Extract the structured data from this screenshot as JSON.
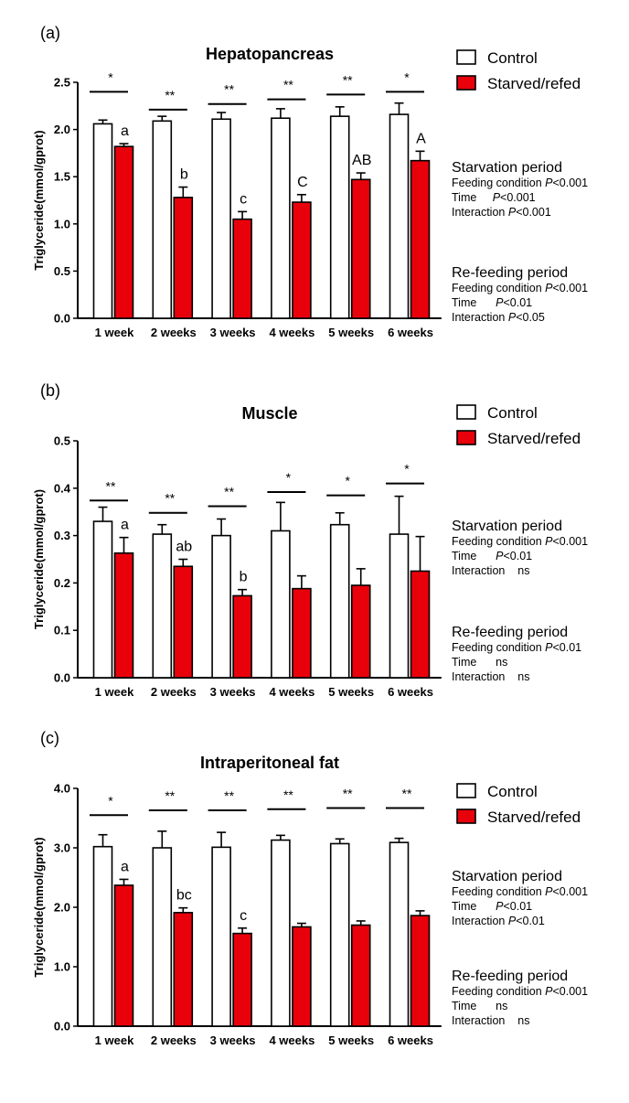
{
  "colors": {
    "control": "#ffffff",
    "treatment": "#e8000b",
    "stroke": "#000000"
  },
  "chart_data": [
    {
      "type": "bar",
      "panel": "(a)",
      "title": "Hepatopancreas",
      "ylabel": "Triglyceride(mmol/gprot)",
      "xlabel": "",
      "ylim": [
        0,
        2.5
      ],
      "yticks": [
        "0.0",
        "0.5",
        "1.0",
        "1.5",
        "2.0",
        "2.5"
      ],
      "categories": [
        "1 week",
        "2 weeks",
        "3 weeks",
        "4 weeks",
        "5 weeks",
        "6 weeks"
      ],
      "series": [
        {
          "name": "Control",
          "values": [
            2.06,
            2.09,
            2.11,
            2.12,
            2.14,
            2.16
          ],
          "errors": [
            0.04,
            0.05,
            0.07,
            0.1,
            0.1,
            0.12
          ]
        },
        {
          "name": "Starved/refed",
          "values": [
            1.82,
            1.28,
            1.05,
            1.23,
            1.47,
            1.67
          ],
          "errors": [
            0.03,
            0.11,
            0.08,
            0.08,
            0.07,
            0.1
          ]
        }
      ],
      "significance": [
        "*",
        "**",
        "**",
        "**",
        "**",
        "*"
      ],
      "significance_y": [
        2.4,
        2.21,
        2.27,
        2.32,
        2.37,
        2.4
      ],
      "letters": [
        "a",
        "b",
        "c",
        "C",
        "AB",
        "A"
      ],
      "legend": [
        "Control",
        "Starved/refed"
      ],
      "stats": {
        "starvation": {
          "head": "Starvation period",
          "lines": [
            "Feeding condition P<0.001",
            "Time     P<0.001",
            "Interaction P<0.001"
          ]
        },
        "refeeding": {
          "head": "Re-feeding period",
          "lines": [
            "Feeding condition P<0.001",
            "Time      P<0.01",
            "Interaction P<0.05"
          ]
        }
      }
    },
    {
      "type": "bar",
      "panel": "(b)",
      "title": "Muscle",
      "ylabel": "Triglyceride(mmol/gprot)",
      "xlabel": "",
      "ylim": [
        0,
        0.5
      ],
      "yticks": [
        "0.0",
        "0.1",
        "0.2",
        "0.3",
        "0.4",
        "0.5"
      ],
      "categories": [
        "1 week",
        "2 weeks",
        "3 weeks",
        "4 weeks",
        "5 weeks",
        "6 weeks"
      ],
      "series": [
        {
          "name": "Control",
          "values": [
            0.33,
            0.303,
            0.3,
            0.31,
            0.323,
            0.303
          ],
          "errors": [
            0.03,
            0.02,
            0.035,
            0.06,
            0.025,
            0.08
          ]
        },
        {
          "name": "Starved/refed",
          "values": [
            0.263,
            0.235,
            0.173,
            0.188,
            0.195,
            0.225
          ],
          "errors": [
            0.033,
            0.015,
            0.013,
            0.027,
            0.035,
            0.073
          ]
        }
      ],
      "significance": [
        "**",
        "**",
        "**",
        "*",
        "*",
        "*"
      ],
      "significance_y": [
        0.374,
        0.348,
        0.362,
        0.392,
        0.385,
        0.41
      ],
      "letters": [
        "a",
        "ab",
        "b",
        "",
        "",
        ""
      ],
      "legend": [
        "Control",
        "Starved/refed"
      ],
      "stats": {
        "starvation": {
          "head": "Starvation period",
          "lines": [
            "Feeding condition P<0.001",
            "Time      P<0.01",
            "Interaction    ns"
          ]
        },
        "refeeding": {
          "head": "Re-feeding period",
          "lines": [
            "Feeding condition P<0.01",
            "Time      ns",
            "Interaction    ns"
          ]
        }
      }
    },
    {
      "type": "bar",
      "panel": "(c)",
      "title": "Intraperitoneal fat",
      "ylabel": "Triglyceride(mmol/gprot)",
      "xlabel": "",
      "ylim": [
        0,
        4.0
      ],
      "yticks": [
        "0.0",
        "1.0",
        "2.0",
        "3.0",
        "4.0"
      ],
      "categories": [
        "1 week",
        "2 weeks",
        "3 weeks",
        "4 weeks",
        "5 weeks",
        "6 weeks"
      ],
      "series": [
        {
          "name": "Control",
          "values": [
            3.02,
            3.0,
            3.01,
            3.13,
            3.07,
            3.09
          ],
          "errors": [
            0.2,
            0.28,
            0.25,
            0.08,
            0.08,
            0.07
          ]
        },
        {
          "name": "Starved/refed",
          "values": [
            2.37,
            1.91,
            1.56,
            1.67,
            1.7,
            1.86
          ],
          "errors": [
            0.1,
            0.08,
            0.09,
            0.06,
            0.07,
            0.08
          ]
        }
      ],
      "significance": [
        "*",
        "**",
        "**",
        "**",
        "**",
        "**"
      ],
      "significance_y": [
        3.55,
        3.63,
        3.63,
        3.65,
        3.67,
        3.67
      ],
      "letters": [
        "a",
        "bc",
        "c",
        "",
        "",
        ""
      ],
      "legend": [
        "Control",
        "Starved/refed"
      ],
      "stats": {
        "starvation": {
          "head": "Starvation period",
          "lines": [
            "Feeding condition P<0.001",
            "Time      P<0.01",
            "Interaction P<0.01"
          ]
        },
        "refeeding": {
          "head": "Re-feeding period",
          "lines": [
            "Feeding condition P<0.001",
            "Time      ns",
            "Interaction    ns"
          ]
        }
      }
    }
  ]
}
